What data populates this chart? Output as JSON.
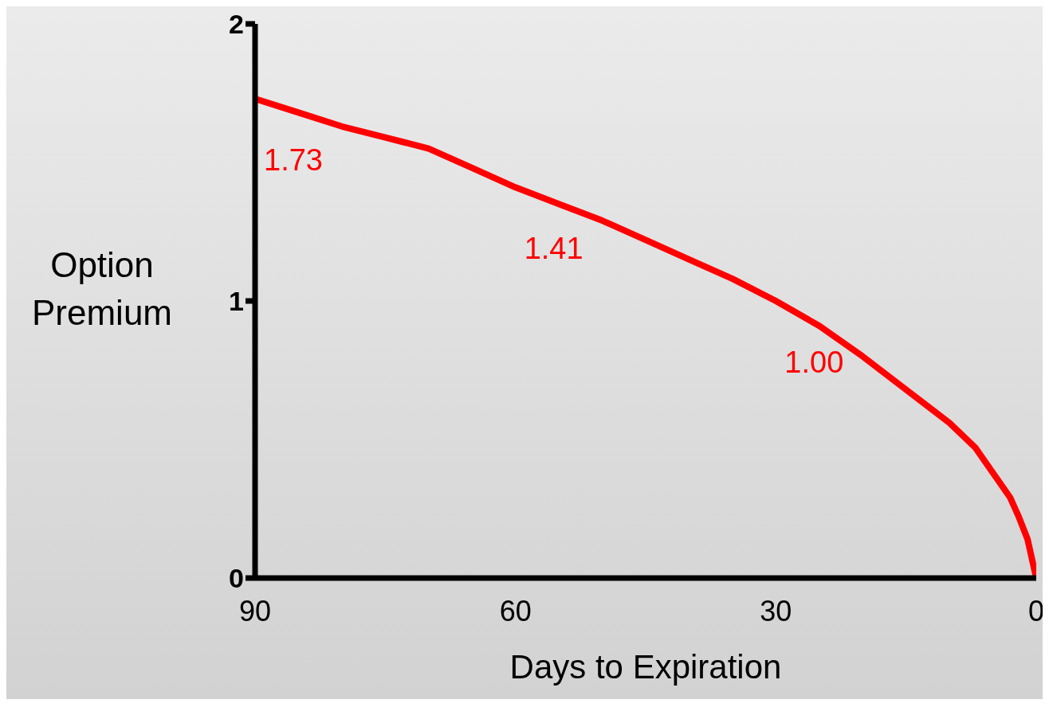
{
  "chart_data": {
    "type": "line",
    "xlabel": "Days to Expiration",
    "ylabel": "Option Premium",
    "x": [
      90,
      85,
      80,
      75,
      70,
      65,
      60,
      55,
      50,
      45,
      40,
      35,
      30,
      25,
      20,
      15,
      10,
      7,
      5,
      3,
      2,
      1,
      0
    ],
    "series": [
      {
        "color": "#ff0000",
        "values": [
          1.73,
          1.68,
          1.63,
          1.59,
          1.55,
          1.48,
          1.41,
          1.35,
          1.29,
          1.22,
          1.15,
          1.08,
          1.0,
          0.91,
          0.8,
          0.68,
          0.56,
          0.47,
          0.38,
          0.29,
          0.22,
          0.14,
          0
        ]
      }
    ],
    "xlim": [
      90,
      0
    ],
    "xticks": [
      90,
      60,
      30,
      0
    ],
    "ylim": [
      0,
      2
    ],
    "yticks": [
      0,
      1,
      2
    ],
    "grid": false,
    "marker": "none",
    "line_style": "solid",
    "annotations": [
      {
        "text": "1.73",
        "x": 90,
        "y": 1.73
      },
      {
        "text": "1.41",
        "x": 60,
        "y": 1.41
      },
      {
        "text": "1.00",
        "x": 30,
        "y": 1.0
      }
    ]
  }
}
